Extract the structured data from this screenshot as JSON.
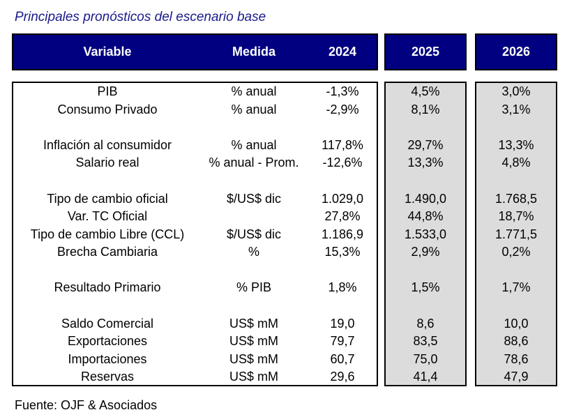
{
  "title": "Principales pronósticos del escenario base",
  "header": {
    "variable": "Variable",
    "medida": "Medida",
    "y2024": "2024",
    "y2025": "2025",
    "y2026": "2026"
  },
  "rows": [
    {
      "variable": "PIB",
      "medida": "% anual",
      "y2024": "-1,3%",
      "y2025": "4,5%",
      "y2026": "3,0%"
    },
    {
      "variable": "Consumo Privado",
      "medida": "% anual",
      "y2024": "-2,9%",
      "y2025": "8,1%",
      "y2026": "3,1%"
    },
    {
      "variable": "Inflación al consumidor",
      "medida": "% anual",
      "y2024": "117,8%",
      "y2025": "29,7%",
      "y2026": "13,3%"
    },
    {
      "variable": "Salario real",
      "medida": "% anual - Prom.",
      "y2024": "-12,6%",
      "y2025": "13,3%",
      "y2026": "4,8%"
    },
    {
      "variable": "Tipo de cambio oficial",
      "medida": "$/US$ dic",
      "y2024": "1.029,0",
      "y2025": "1.490,0",
      "y2026": "1.768,5"
    },
    {
      "variable": "Var. TC Oficial",
      "medida": "",
      "y2024": "27,8%",
      "y2025": "44,8%",
      "y2026": "18,7%"
    },
    {
      "variable": "Tipo de cambio Libre (CCL)",
      "medida": "$/US$ dic",
      "y2024": "1.186,9",
      "y2025": "1.533,0",
      "y2026": "1.771,5"
    },
    {
      "variable": "Brecha Cambiaria",
      "medida": "%",
      "y2024": "15,3%",
      "y2025": "2,9%",
      "y2026": "0,2%"
    },
    {
      "variable": "Resultado Primario",
      "medida": "% PIB",
      "y2024": "1,8%",
      "y2025": "1,5%",
      "y2026": "1,7%"
    },
    {
      "variable": "Saldo Comercial",
      "medida": "US$ mM",
      "y2024": "19,0",
      "y2025": "8,6",
      "y2026": "10,0"
    },
    {
      "variable": "Exportaciones",
      "medida": "US$ mM",
      "y2024": "79,7",
      "y2025": "83,5",
      "y2026": "88,6"
    },
    {
      "variable": "Importaciones",
      "medida": "US$ mM",
      "y2024": "60,7",
      "y2025": "75,0",
      "y2026": "78,6"
    },
    {
      "variable": "Reservas",
      "medida": "US$ mM",
      "y2024": "29,6",
      "y2025": "41,4",
      "y2026": "47,9"
    }
  ],
  "source": "Fuente: OJF & Asociados",
  "colors": {
    "header_bg": "#000080",
    "title": "#1a1a8c",
    "forecast_bg": "#dcdcdc"
  }
}
